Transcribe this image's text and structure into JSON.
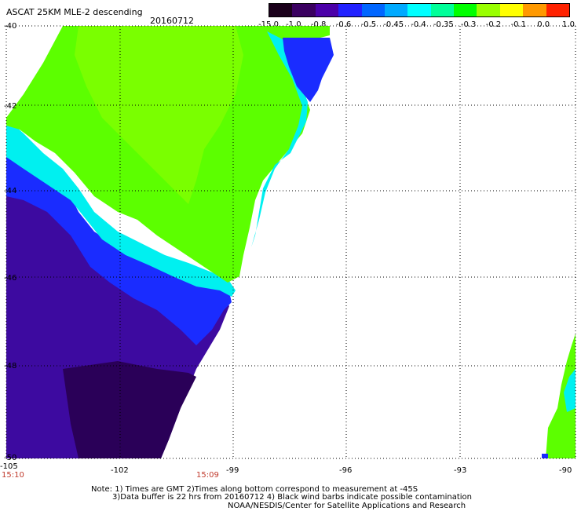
{
  "header": {
    "title": "ASCAT 25KM MLE-2 descending",
    "date": "20160712"
  },
  "colorbar": {
    "tick_labels": [
      "-15.0",
      "-1.0",
      "-0.8",
      "-0.6",
      "-0.5",
      "-0.45",
      "-0.4",
      "-0.35",
      "-0.3",
      "-0.2",
      "-0.1",
      "0.0",
      "1.0"
    ],
    "colors": [
      "#1a001a",
      "#3a0060",
      "#4b00a8",
      "#2222ff",
      "#0066ff",
      "#00aaff",
      "#00ffff",
      "#00ff99",
      "#00ff00",
      "#99ff00",
      "#ffff00",
      "#ff9900",
      "#ff2200"
    ]
  },
  "map": {
    "lon_labels": [
      "-105",
      "-102",
      "-99",
      "-96",
      "-93",
      "-90"
    ],
    "lat_labels": [
      "-40",
      "-42",
      "-44",
      "-46",
      "-48",
      "-50"
    ],
    "time_labels": [
      "15:10",
      "15:09"
    ],
    "colors": {
      "deep": "#2a0058",
      "purple": "#3d0aa0",
      "blue": "#1a2cff",
      "cyan": "#00f0f0",
      "green": "#5cff00",
      "bright_green": "#7aff00",
      "grid": "#000000"
    }
  },
  "notes": {
    "line1": "Note: 1) Times are GMT 2)Times along bottom correspond to measurement at -45S",
    "line2": "3)Data buffer is 22 hrs from 20160712 4) Black wind barbs indicate possible contamination",
    "line3": "NOAA/NESDIS/Center for Satellite Applications and Research"
  }
}
